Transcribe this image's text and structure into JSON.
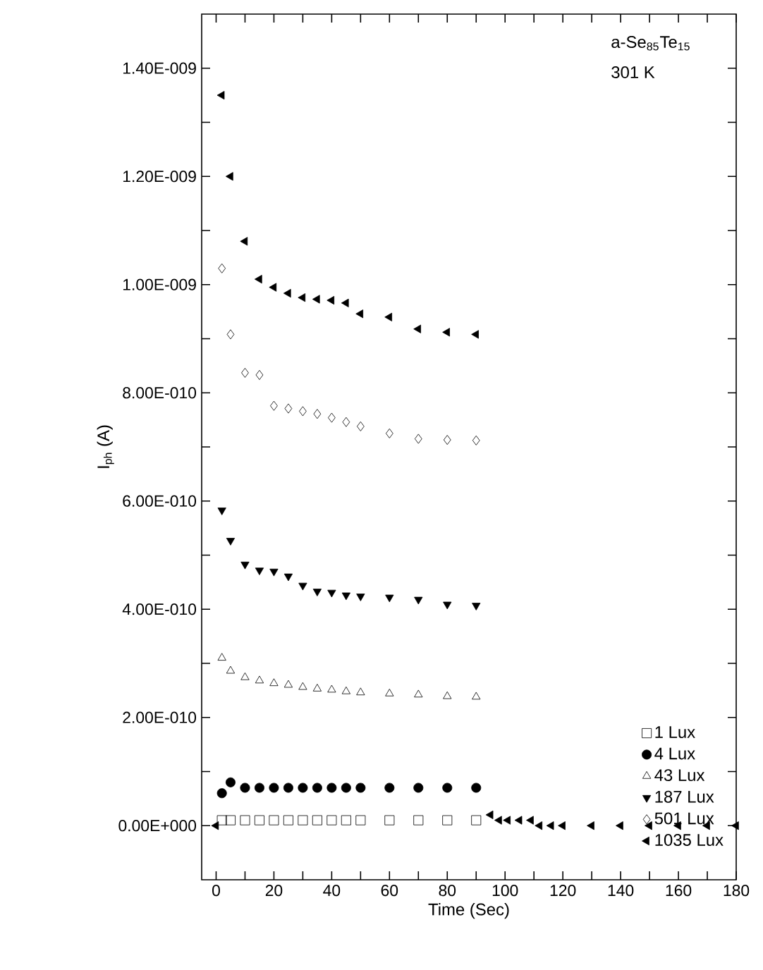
{
  "chart_data": {
    "type": "scatter",
    "xlabel": "Time (Sec)",
    "ylabel": "I$_{ph}$ (A)",
    "annotations": [
      "a-Se$_{85}$Te$_{15}$",
      "301 K"
    ],
    "xlim": [
      -5,
      180
    ],
    "ylim": [
      -1e-10,
      1.5e-09
    ],
    "xticks": [
      0,
      {
        "value": 10,
        "label": null
      },
      20,
      {
        "value": 30,
        "label": null
      },
      40,
      {
        "value": 50,
        "label": null
      },
      60,
      {
        "value": 70,
        "label": null
      },
      80,
      {
        "value": 90,
        "label": null
      },
      100,
      {
        "value": 110,
        "label": null
      },
      120,
      {
        "value": 130,
        "label": null
      },
      140,
      {
        "value": 150,
        "label": null
      },
      160,
      {
        "value": 170,
        "label": null
      },
      180
    ],
    "yticks": [
      {
        "value": 0,
        "label": "0.00E+000"
      },
      {
        "value": 1e-10,
        "label": null
      },
      {
        "value": 2e-10,
        "label": "2.00E-010"
      },
      {
        "value": 3e-10,
        "label": null
      },
      {
        "value": 4e-10,
        "label": "4.00E-010"
      },
      {
        "value": 5e-10,
        "label": null
      },
      {
        "value": 6e-10,
        "label": "6.00E-010"
      },
      {
        "value": 7e-10,
        "label": null
      },
      {
        "value": 8e-10,
        "label": "8.00E-010"
      },
      {
        "value": 9e-10,
        "label": null
      },
      {
        "value": 1e-09,
        "label": "1.00E-009"
      },
      {
        "value": 1.1e-09,
        "label": null
      },
      {
        "value": 1.2e-09,
        "label": "1.20E-009"
      },
      {
        "value": 1.3e-09,
        "label": null
      },
      {
        "value": 1.4e-09,
        "label": "1.40E-009"
      }
    ],
    "legend": "bottom right",
    "grid": false,
    "x": [
      0,
      2,
      5,
      10,
      15,
      20,
      25,
      30,
      35,
      40,
      45,
      50,
      60,
      70,
      80,
      90,
      95,
      98,
      101,
      105,
      109,
      112,
      116,
      120,
      130,
      140,
      150,
      160,
      170,
      180
    ],
    "series": [
      {
        "name": "1 Lux",
        "color": "#000000",
        "marker": "square",
        "values": [
          null,
          1e-11,
          1e-11,
          1e-11,
          1e-11,
          1e-11,
          1e-11,
          1e-11,
          1e-11,
          1e-11,
          1e-11,
          1e-11,
          1e-11,
          1e-11,
          1e-11,
          1e-11,
          null,
          null,
          null,
          null,
          null,
          null,
          null,
          null,
          null,
          null,
          null,
          null,
          null,
          null
        ]
      },
      {
        "name": "4 Lux",
        "color": "#000000",
        "marker": "circle",
        "values": [
          null,
          6e-11,
          8e-11,
          7e-11,
          7e-11,
          7e-11,
          7e-11,
          7e-11,
          7e-11,
          7e-11,
          7e-11,
          7e-11,
          7e-11,
          7e-11,
          7e-11,
          7e-11,
          null,
          null,
          null,
          null,
          null,
          null,
          null,
          null,
          null,
          null,
          null,
          null,
          null,
          null
        ]
      },
      {
        "name": "43 Lux",
        "color": "#000000",
        "marker": "triangle",
        "values": [
          null,
          3.1e-10,
          2.86e-10,
          2.74e-10,
          2.68e-10,
          2.63e-10,
          2.6e-10,
          2.56e-10,
          2.53e-10,
          2.51e-10,
          2.48e-10,
          2.46e-10,
          2.44e-10,
          2.42e-10,
          2.39e-10,
          2.38e-10,
          null,
          null,
          null,
          null,
          null,
          null,
          null,
          null,
          null,
          null,
          null,
          null,
          null,
          null
        ]
      },
      {
        "name": "187 Lux",
        "color": "#000000",
        "marker": "triangle",
        "values": [
          null,
          5.83e-10,
          5.27e-10,
          4.83e-10,
          4.72e-10,
          4.7e-10,
          4.61e-10,
          4.44e-10,
          4.33e-10,
          4.31e-10,
          4.26e-10,
          4.24e-10,
          4.22e-10,
          4.18e-10,
          4.09e-10,
          4.07e-10,
          null,
          null,
          null,
          null,
          null,
          null,
          null,
          null,
          null,
          null,
          null,
          null,
          null,
          null
        ]
      },
      {
        "name": "501 Lux",
        "color": "#000000",
        "marker": "diamond",
        "values": [
          null,
          1.03e-09,
          9.08e-10,
          8.37e-10,
          8.33e-10,
          7.76e-10,
          7.71e-10,
          7.66e-10,
          7.61e-10,
          7.54e-10,
          7.46e-10,
          7.38e-10,
          7.25e-10,
          7.15e-10,
          7.13e-10,
          7.12e-10,
          null,
          null,
          null,
          null,
          null,
          null,
          null,
          null,
          null,
          null,
          null,
          null,
          null,
          null
        ]
      },
      {
        "name": "1035 Lux",
        "color": "#000000",
        "marker": "triangle",
        "values": [
          0,
          1.35e-09,
          1.2e-09,
          1.08e-09,
          1.01e-09,
          9.95e-10,
          9.84e-10,
          9.76e-10,
          9.73e-10,
          9.71e-10,
          9.66e-10,
          9.46e-10,
          9.4e-10,
          9.18e-10,
          9.12e-10,
          9.08e-10,
          2e-11,
          1e-11,
          1e-11,
          1e-11,
          1e-11,
          0,
          0,
          0,
          0,
          0,
          0,
          0,
          0,
          0
        ]
      }
    ]
  }
}
